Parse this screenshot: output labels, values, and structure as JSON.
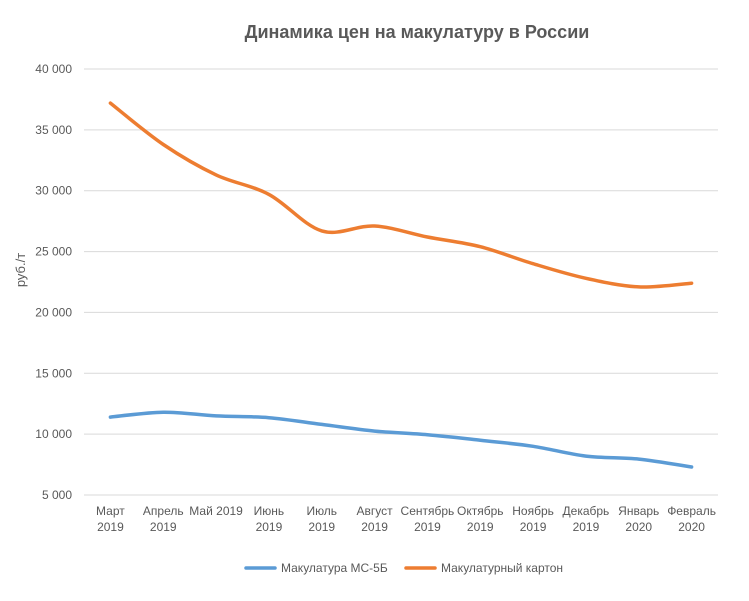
{
  "chart_data": {
    "type": "line",
    "title": "Динамика цен на макулатуру в России",
    "xlabel": "",
    "ylabel": "руб./т",
    "ylim": [
      5000,
      40000
    ],
    "yticks": [
      5000,
      10000,
      15000,
      20000,
      25000,
      30000,
      35000,
      40000
    ],
    "ytick_labels": [
      "5 000",
      "10 000",
      "15 000",
      "20 000",
      "25 000",
      "30 000",
      "35 000",
      "40 000"
    ],
    "grid": true,
    "legend_position": "bottom",
    "categories": [
      [
        "Март",
        "2019"
      ],
      [
        "Апрель",
        "2019"
      ],
      [
        "Май 2019"
      ],
      [
        "Июнь",
        "2019"
      ],
      [
        "Июль",
        "2019"
      ],
      [
        "Август",
        "2019"
      ],
      [
        "Сентябрь",
        "2019"
      ],
      [
        "Октябрь",
        "2019"
      ],
      [
        "Ноябрь",
        "2019"
      ],
      [
        "Декабрь",
        "2019"
      ],
      [
        "Январь",
        "2020"
      ],
      [
        "Февраль",
        "2020"
      ]
    ],
    "series": [
      {
        "name": "Макулатура МС-5Б",
        "color": "#5b9bd5",
        "values": [
          11400,
          11800,
          11500,
          11350,
          10800,
          10250,
          9950,
          9500,
          9000,
          8200,
          7950,
          7300
        ]
      },
      {
        "name": "Макулатурный картон",
        "color": "#ed7d31",
        "values": [
          37200,
          33800,
          31300,
          29700,
          26700,
          27100,
          26200,
          25400,
          24000,
          22800,
          22100,
          22400
        ]
      }
    ]
  }
}
